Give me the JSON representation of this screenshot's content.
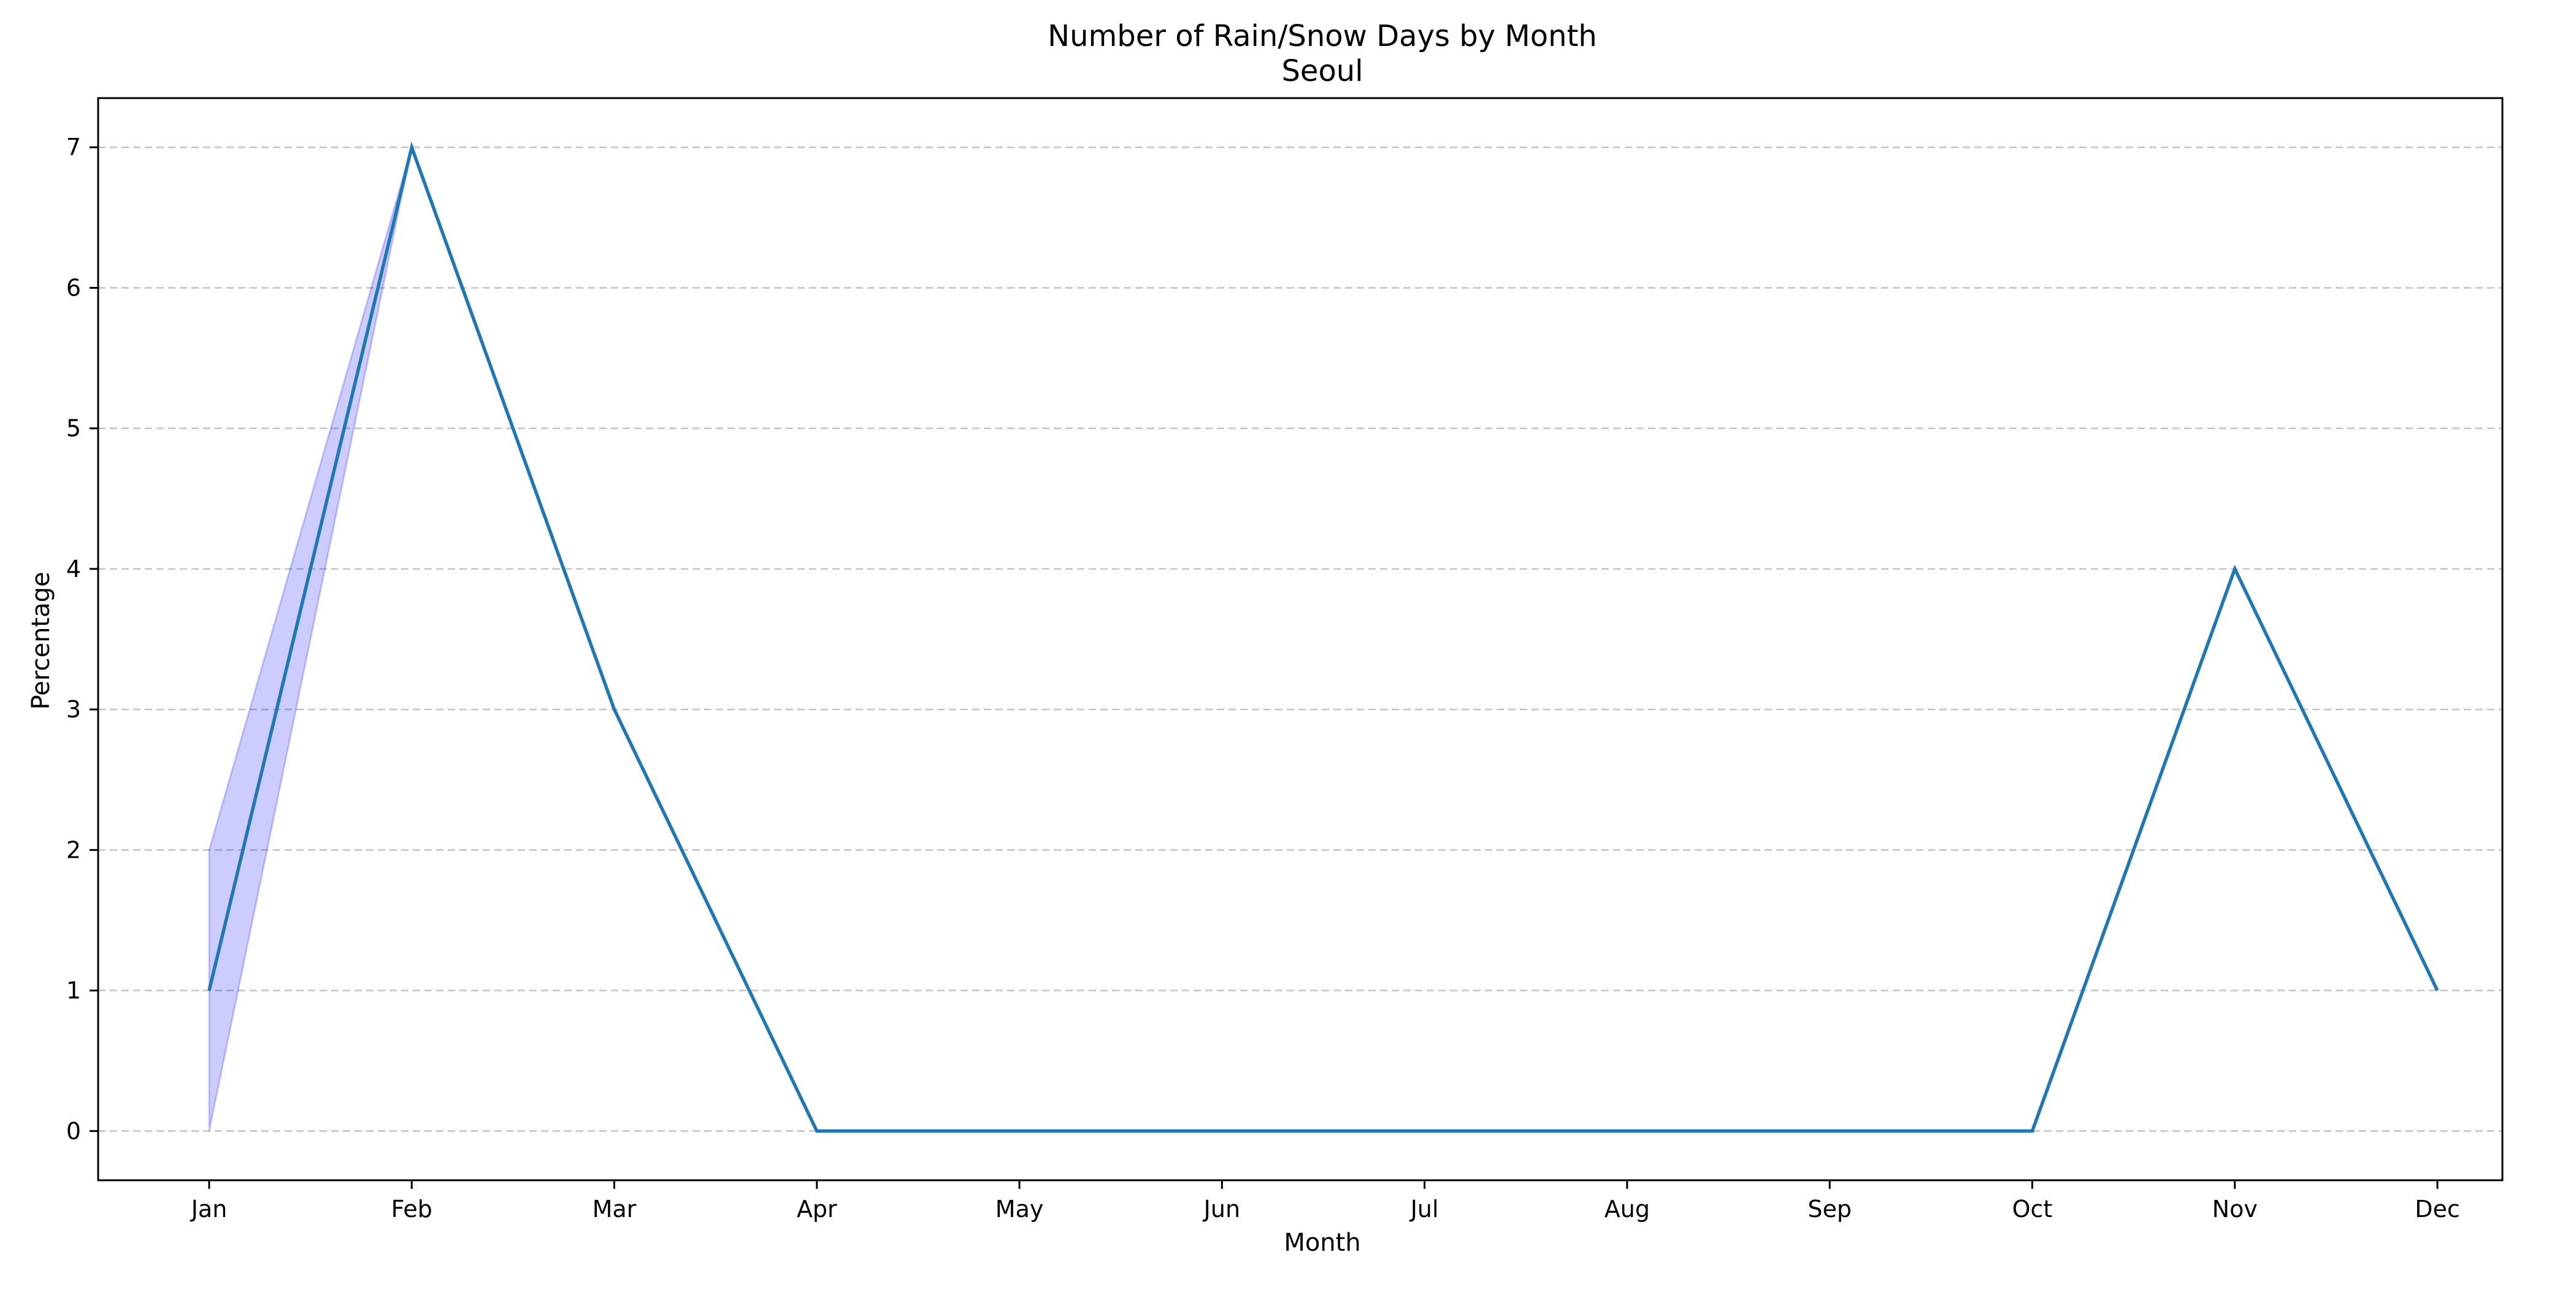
{
  "chart_data": {
    "type": "line",
    "title": "Number of Rain/Snow Days by Month",
    "subtitle": "Seoul",
    "xlabel": "Month",
    "ylabel": "Percentage",
    "categories": [
      "Jan",
      "Feb",
      "Mar",
      "Apr",
      "May",
      "Jun",
      "Jul",
      "Aug",
      "Sep",
      "Oct",
      "Nov",
      "Dec"
    ],
    "values": [
      1,
      7,
      3,
      0,
      0,
      0,
      0,
      0,
      0,
      0,
      4,
      1
    ],
    "band": {
      "upper": [
        2,
        7
      ],
      "lower": [
        0,
        7
      ]
    },
    "ylim": [
      -0.35,
      7.35
    ],
    "yticks": [
      0,
      1,
      2,
      3,
      4,
      5,
      6,
      7
    ],
    "grid": "y-dashed",
    "colors": {
      "line": "#1f77b4",
      "band_fill": "#0000ff",
      "grid": "#b0b0b0"
    }
  }
}
